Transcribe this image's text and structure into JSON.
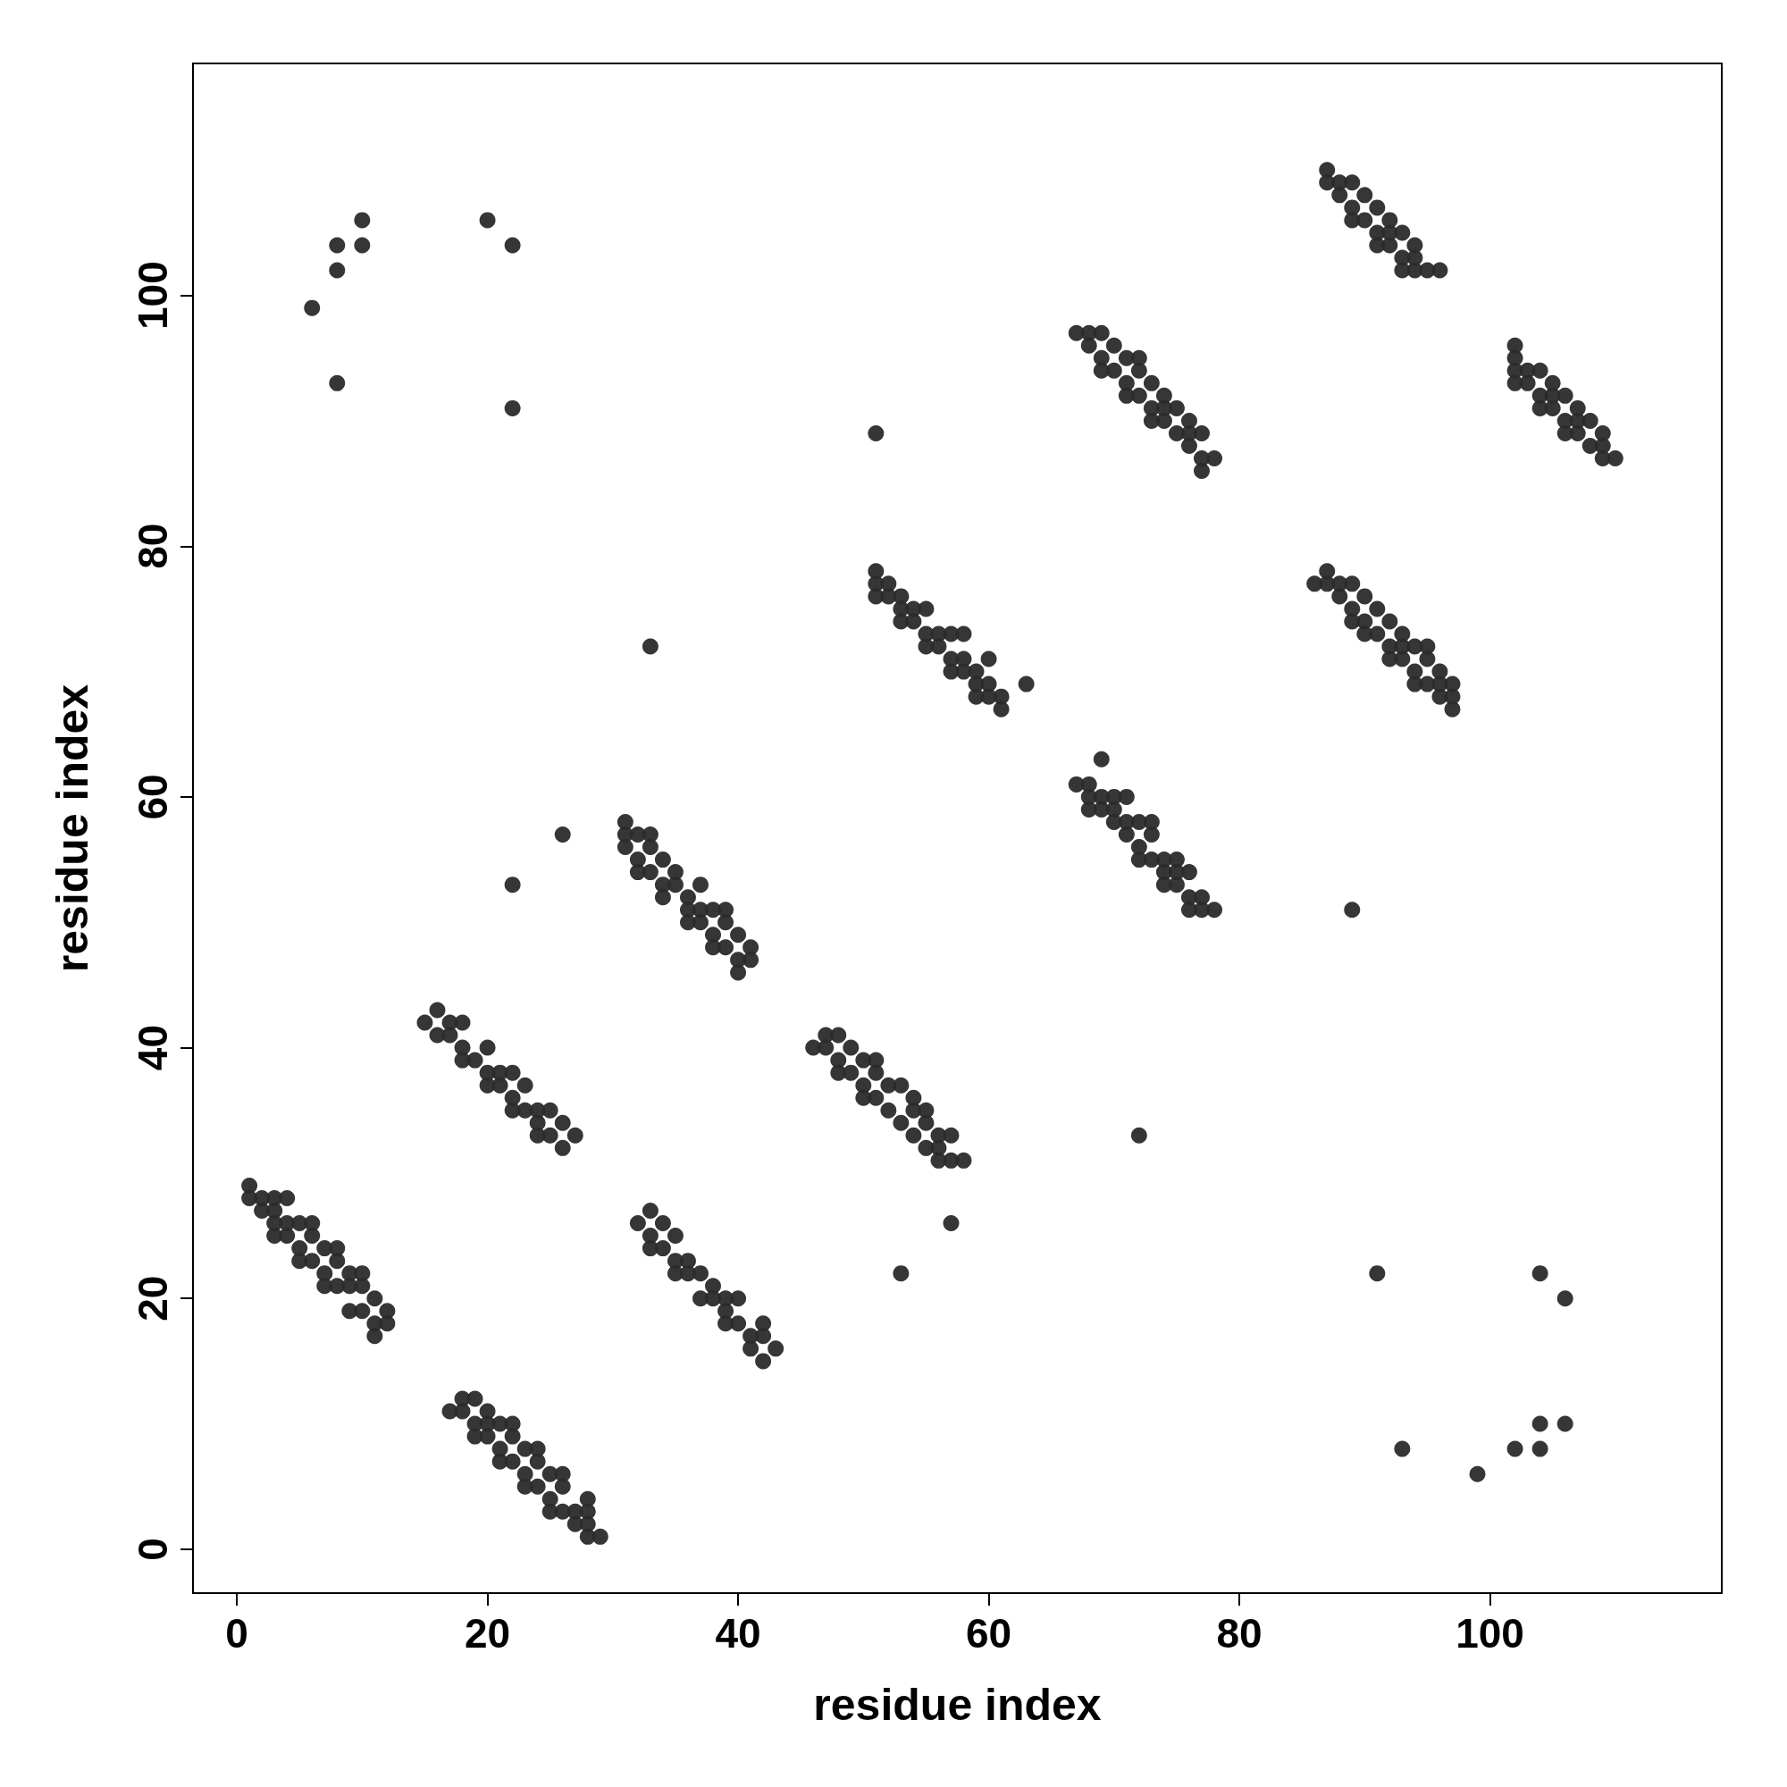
{
  "chart_data": {
    "type": "scatter",
    "xlabel": "residue index",
    "ylabel": "residue index",
    "xlim": [
      -3.5,
      118.5
    ],
    "ylim": [
      -3.5,
      118.5
    ],
    "xticks": [
      0,
      20,
      40,
      60,
      80,
      100
    ],
    "yticks": [
      0,
      20,
      40,
      60,
      80,
      100
    ],
    "grid": false,
    "marker": "circle",
    "series": [
      {
        "color": "#2b2b2b",
        "x": [
          1,
          1,
          2,
          2,
          3,
          3,
          3,
          3,
          4,
          4,
          4,
          5,
          5,
          5,
          6,
          6,
          6,
          7,
          7,
          7,
          8,
          8,
          8,
          9,
          9,
          9,
          10,
          10,
          10,
          11,
          11,
          11,
          12,
          12,
          17,
          18,
          18,
          19,
          19,
          19,
          20,
          20,
          20,
          21,
          21,
          21,
          22,
          22,
          22,
          23,
          23,
          23,
          24,
          24,
          24,
          25,
          25,
          25,
          26,
          26,
          26,
          27,
          27,
          28,
          28,
          28,
          28,
          29,
          15,
          16,
          16,
          17,
          17,
          18,
          18,
          18,
          19,
          20,
          20,
          20,
          21,
          21,
          22,
          22,
          22,
          23,
          23,
          24,
          24,
          24,
          25,
          25,
          26,
          26,
          27,
          31,
          31,
          31,
          32,
          32,
          32,
          33,
          33,
          33,
          34,
          34,
          34,
          35,
          35,
          36,
          36,
          36,
          37,
          37,
          37,
          38,
          38,
          38,
          39,
          39,
          39,
          40,
          40,
          40,
          41,
          41,
          32,
          33,
          33,
          33,
          34,
          34,
          35,
          35,
          35,
          36,
          36,
          37,
          37,
          38,
          38,
          39,
          39,
          39,
          40,
          40,
          41,
          41,
          42,
          42,
          42,
          43,
          46,
          47,
          47,
          48,
          48,
          48,
          49,
          49,
          50,
          50,
          50,
          51,
          51,
          51,
          52,
          52,
          53,
          53,
          54,
          54,
          54,
          55,
          55,
          55,
          56,
          56,
          56,
          57,
          57,
          58,
          51,
          51,
          51,
          52,
          52,
          53,
          53,
          53,
          54,
          54,
          55,
          55,
          55,
          56,
          56,
          57,
          57,
          57,
          58,
          58,
          58,
          59,
          59,
          59,
          60,
          60,
          60,
          61,
          61,
          67,
          68,
          68,
          68,
          69,
          69,
          70,
          70,
          70,
          71,
          71,
          71,
          72,
          72,
          72,
          73,
          73,
          73,
          74,
          74,
          74,
          75,
          75,
          75,
          76,
          76,
          76,
          77,
          77,
          78,
          67,
          68,
          68,
          69,
          69,
          69,
          70,
          70,
          71,
          71,
          71,
          72,
          72,
          72,
          73,
          73,
          73,
          74,
          74,
          74,
          75,
          75,
          76,
          76,
          76,
          77,
          77,
          77,
          78,
          86,
          87,
          87,
          88,
          88,
          89,
          89,
          89,
          90,
          90,
          90,
          91,
          91,
          92,
          92,
          92,
          93,
          93,
          93,
          94,
          94,
          94,
          95,
          95,
          95,
          96,
          96,
          96,
          97,
          97,
          97,
          87,
          87,
          88,
          88,
          89,
          89,
          89,
          90,
          90,
          91,
          91,
          91,
          92,
          92,
          92,
          93,
          93,
          93,
          94,
          94,
          94,
          95,
          96,
          102,
          102,
          102,
          102,
          103,
          103,
          104,
          104,
          104,
          105,
          105,
          105,
          106,
          106,
          106,
          107,
          107,
          107,
          108,
          108,
          109,
          109,
          109,
          110,
          6,
          8,
          8,
          8,
          10,
          10,
          20,
          22,
          22,
          33,
          26,
          22,
          51,
          63,
          57,
          53,
          72,
          69,
          89,
          91,
          93,
          99,
          102,
          104,
          104,
          104,
          106,
          106
        ],
        "values": [
          29,
          28,
          28,
          27,
          28,
          27,
          26,
          25,
          28,
          26,
          25,
          26,
          24,
          23,
          26,
          25,
          23,
          24,
          22,
          21,
          24,
          23,
          21,
          22,
          21,
          19,
          22,
          21,
          19,
          20,
          18,
          17,
          19,
          18,
          11,
          12,
          11,
          12,
          10,
          9,
          11,
          10,
          9,
          10,
          8,
          7,
          10,
          9,
          7,
          8,
          6,
          5,
          8,
          7,
          5,
          6,
          4,
          3,
          6,
          5,
          3,
          3,
          2,
          4,
          3,
          2,
          1,
          1,
          42,
          43,
          41,
          42,
          41,
          42,
          40,
          39,
          39,
          40,
          38,
          37,
          38,
          37,
          38,
          36,
          35,
          37,
          35,
          35,
          34,
          33,
          35,
          33,
          34,
          32,
          33,
          58,
          57,
          56,
          57,
          55,
          54,
          57,
          56,
          54,
          55,
          53,
          52,
          54,
          53,
          52,
          51,
          50,
          53,
          51,
          50,
          51,
          49,
          48,
          51,
          50,
          48,
          49,
          47,
          46,
          48,
          47,
          26,
          27,
          25,
          24,
          26,
          24,
          25,
          23,
          22,
          23,
          22,
          22,
          20,
          21,
          20,
          20,
          19,
          18,
          20,
          18,
          17,
          16,
          18,
          17,
          15,
          16,
          40,
          41,
          40,
          41,
          39,
          38,
          40,
          38,
          39,
          37,
          36,
          39,
          38,
          36,
          37,
          35,
          37,
          34,
          36,
          35,
          33,
          35,
          34,
          32,
          33,
          32,
          31,
          33,
          31,
          31,
          78,
          77,
          76,
          77,
          76,
          76,
          75,
          74,
          75,
          74,
          75,
          73,
          72,
          73,
          72,
          73,
          71,
          70,
          73,
          71,
          70,
          70,
          69,
          68,
          71,
          69,
          68,
          68,
          67,
          61,
          61,
          60,
          59,
          60,
          59,
          60,
          59,
          58,
          60,
          58,
          57,
          58,
          56,
          55,
          58,
          57,
          55,
          55,
          54,
          53,
          55,
          54,
          53,
          54,
          52,
          51,
          52,
          51,
          51,
          97,
          97,
          96,
          97,
          95,
          94,
          96,
          94,
          95,
          93,
          92,
          95,
          94,
          92,
          93,
          91,
          90,
          92,
          91,
          90,
          91,
          89,
          90,
          89,
          88,
          89,
          87,
          86,
          87,
          77,
          78,
          77,
          77,
          76,
          77,
          75,
          74,
          76,
          74,
          73,
          75,
          73,
          74,
          72,
          71,
          73,
          72,
          71,
          72,
          70,
          69,
          72,
          71,
          69,
          70,
          69,
          68,
          69,
          68,
          67,
          110,
          109,
          109,
          108,
          109,
          107,
          106,
          108,
          106,
          107,
          105,
          104,
          106,
          105,
          104,
          105,
          103,
          102,
          104,
          103,
          102,
          102,
          102,
          96,
          95,
          94,
          93,
          94,
          93,
          94,
          92,
          91,
          93,
          92,
          91,
          92,
          90,
          89,
          91,
          90,
          89,
          90,
          88,
          89,
          88,
          87,
          87,
          99,
          104,
          102,
          93,
          106,
          104,
          106,
          104,
          91,
          72,
          57,
          53,
          89,
          69,
          26,
          22,
          33,
          63,
          51,
          22,
          8,
          6,
          8,
          10,
          8,
          22,
          20,
          10
        ]
      }
    ]
  }
}
